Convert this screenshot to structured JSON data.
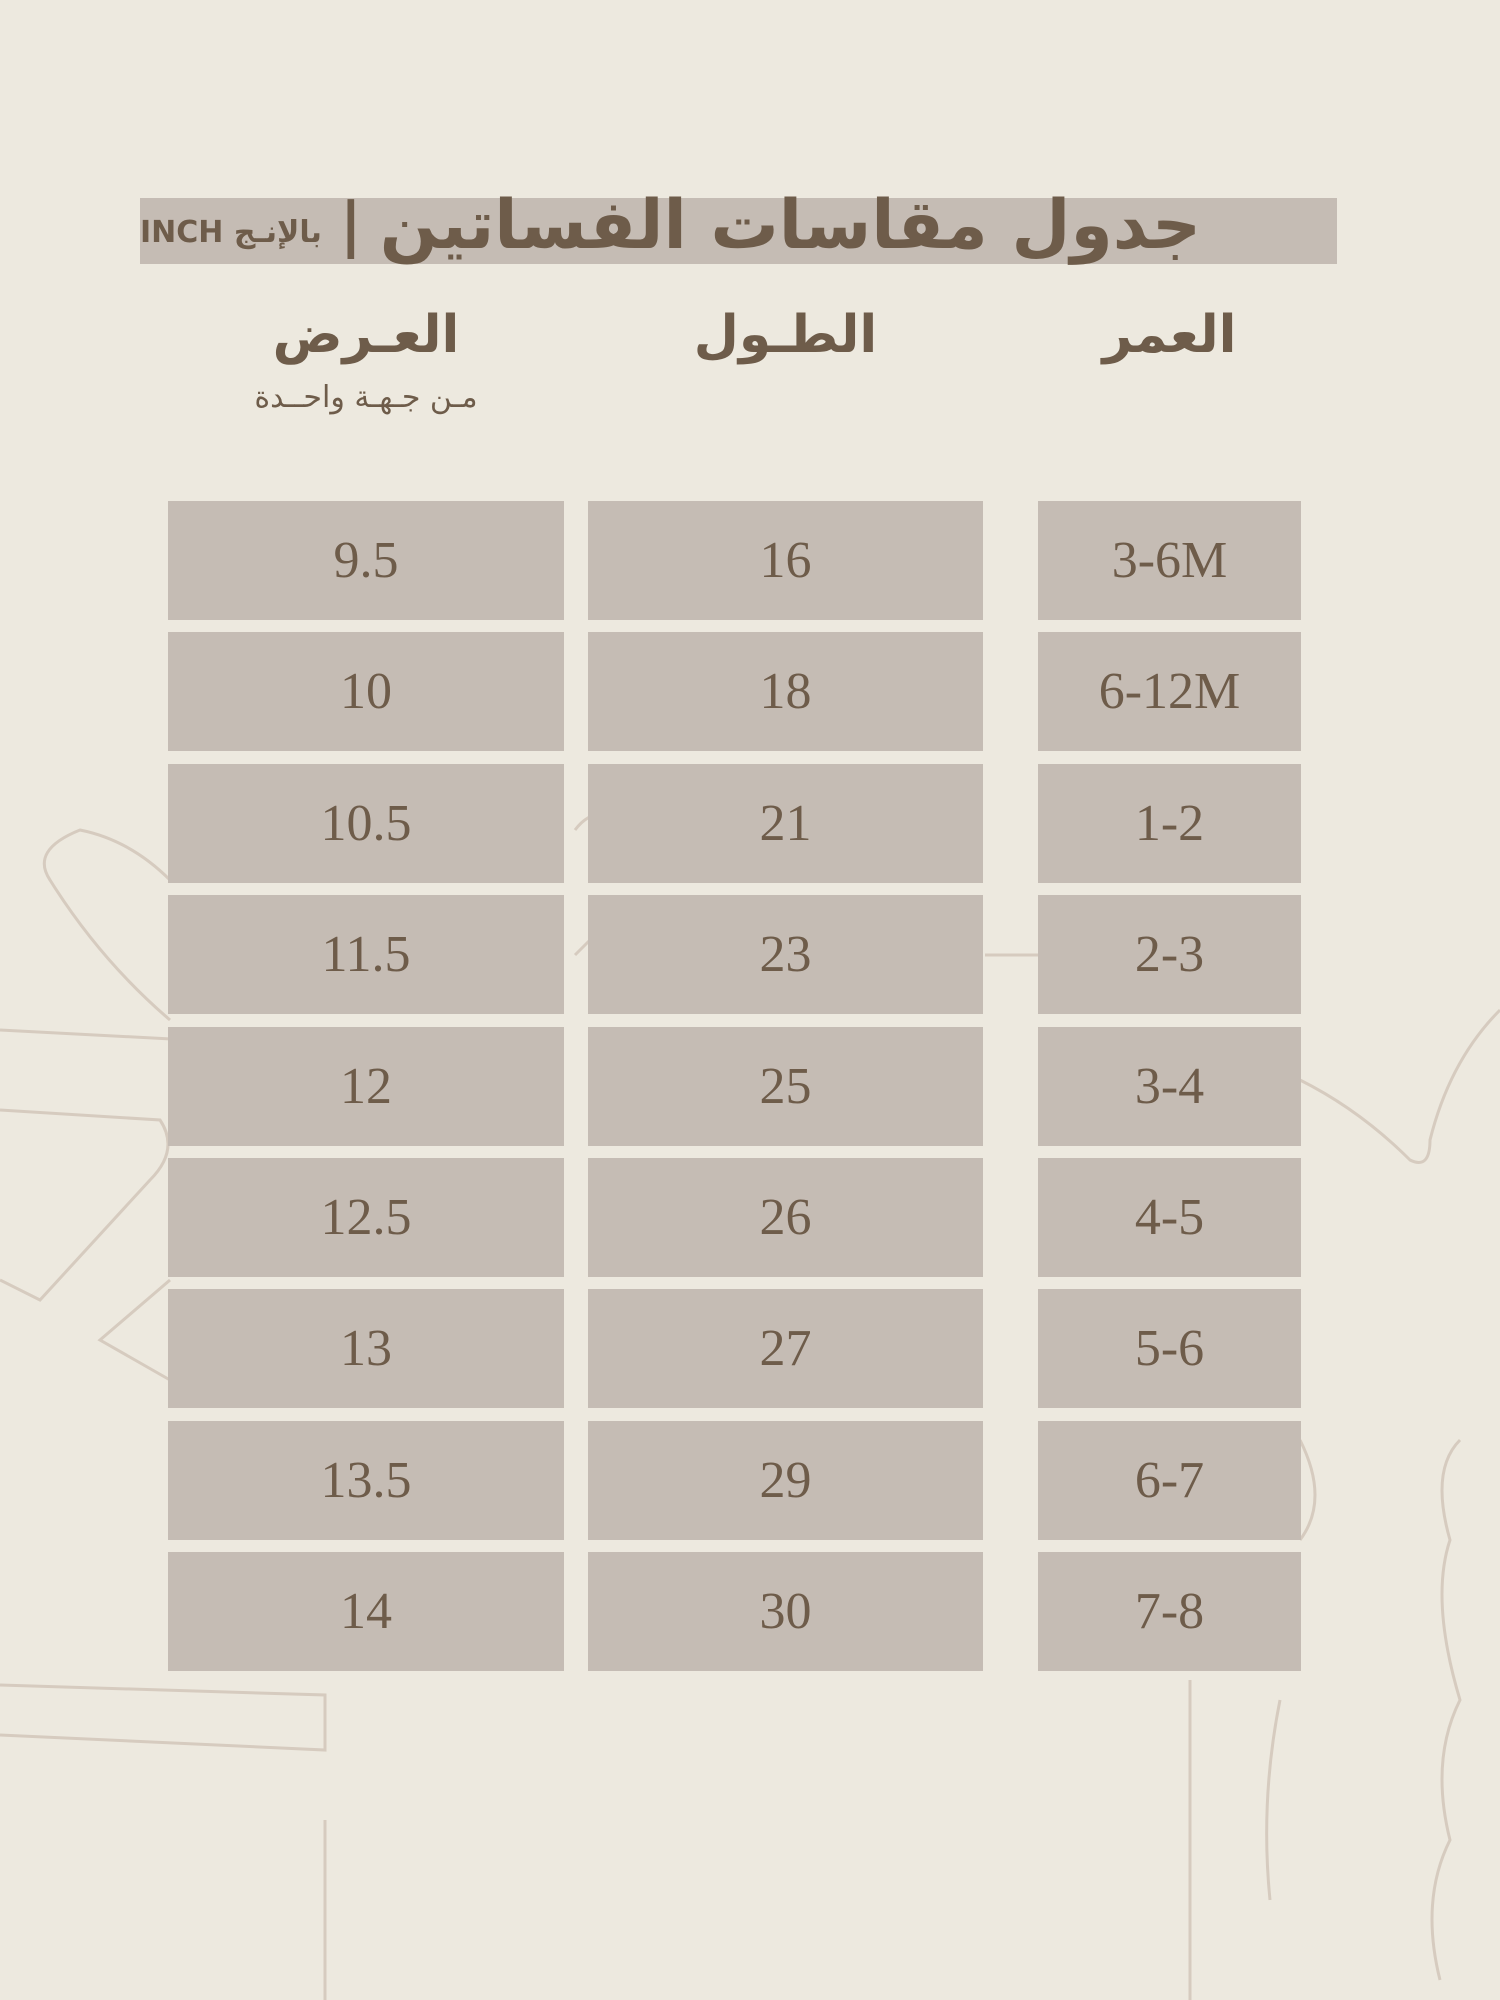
{
  "title": {
    "main": "جدول مقاسات الفساتين",
    "separator": "|",
    "unit": "بالإنـج INCH"
  },
  "headers": {
    "age": "العمر",
    "length": "الطـول",
    "width": "العـرض",
    "width_note": "مـن جـهـة واحــدة"
  },
  "rows": [
    {
      "age": "3-6M",
      "length": "16",
      "width": "9.5"
    },
    {
      "age": "6-12M",
      "length": "18",
      "width": "10"
    },
    {
      "age": "1-2",
      "length": "21",
      "width": "10.5"
    },
    {
      "age": "2-3",
      "length": "23",
      "width": "11.5"
    },
    {
      "age": "3-4",
      "length": "25",
      "width": "12"
    },
    {
      "age": "4-5",
      "length": "26",
      "width": "12.5"
    },
    {
      "age": "5-6",
      "length": "27",
      "width": "13"
    },
    {
      "age": "6-7",
      "length": "29",
      "width": "13.5"
    },
    {
      "age": "7-8",
      "length": "30",
      "width": "14"
    }
  ],
  "colors": {
    "background": "#ede9df",
    "cell": "#c5bcb4",
    "text": "#6e5c4a",
    "line_art": "#d6cbbf"
  }
}
